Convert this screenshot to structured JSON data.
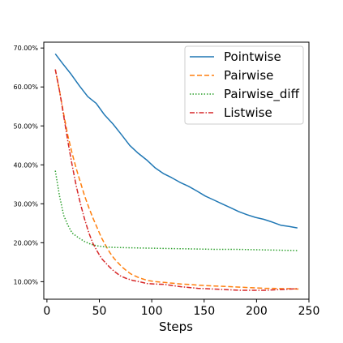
{
  "chart_data": {
    "type": "line",
    "title": "",
    "xlabel": "Steps",
    "ylabel": "",
    "xlim": [
      -3,
      250
    ],
    "ylim": [
      5.5,
      71.5
    ],
    "xticks": [
      0,
      50,
      100,
      150,
      200,
      250
    ],
    "yticks": [
      10,
      20,
      30,
      40,
      50,
      60,
      70
    ],
    "ytick_labels": [
      "10.00%",
      "20.00%",
      "30.00%",
      "40.00%",
      "50.00%",
      "60.00%",
      "70.00%"
    ],
    "grid": false,
    "legend_position": "top-right",
    "colors": {
      "Pointwise": "#1f77b4",
      "Pairwise": "#ff7f0e",
      "Pairwise_diff": "#2ca02c",
      "Listwise": "#d62728"
    },
    "series": [
      {
        "name": "Pointwise",
        "style": "solid",
        "x": [
          8,
          15,
          23,
          31,
          39,
          47,
          55,
          63,
          71,
          79,
          87,
          95,
          103,
          111,
          119,
          127,
          135,
          143,
          151,
          159,
          167,
          175,
          183,
          191,
          199,
          207,
          215,
          223,
          231,
          239
        ],
        "y": [
          68.5,
          66.0,
          63.3,
          60.3,
          57.5,
          55.8,
          52.8,
          50.5,
          47.8,
          45.0,
          43.0,
          41.3,
          39.3,
          37.8,
          36.7,
          35.5,
          34.5,
          33.3,
          32.0,
          31.0,
          30.0,
          29.0,
          28.0,
          27.2,
          26.5,
          26.0,
          25.3,
          24.5,
          24.2,
          23.8
        ]
      },
      {
        "name": "Pairwise",
        "style": "dashed",
        "x": [
          8,
          12,
          16,
          20,
          24,
          28,
          32,
          36,
          40,
          44,
          48,
          52,
          56,
          60,
          64,
          68,
          72,
          76,
          80,
          88,
          96,
          104,
          112,
          120,
          128,
          136,
          144,
          152,
          160,
          168,
          176,
          184,
          192,
          200,
          208,
          216,
          224,
          232,
          240
        ],
        "y": [
          64.5,
          59.0,
          53.0,
          47.5,
          43.0,
          39.0,
          35.5,
          32.0,
          29.0,
          26.3,
          23.8,
          21.3,
          19.3,
          17.5,
          16.0,
          14.8,
          13.7,
          12.8,
          12.0,
          11.0,
          10.3,
          10.0,
          9.8,
          9.6,
          9.4,
          9.3,
          9.1,
          9.0,
          8.9,
          8.8,
          8.7,
          8.6,
          8.5,
          8.4,
          8.3,
          8.3,
          8.2,
          8.2,
          8.1
        ]
      },
      {
        "name": "Pairwise_diff",
        "style": "dotted",
        "x": [
          8,
          12,
          16,
          20,
          24,
          30,
          36,
          42,
          48,
          56,
          64,
          80,
          100,
          120,
          140,
          160,
          180,
          200,
          220,
          240
        ],
        "y": [
          38.5,
          32.0,
          27.0,
          24.5,
          22.5,
          21.3,
          20.3,
          19.6,
          19.2,
          18.9,
          18.8,
          18.7,
          18.6,
          18.5,
          18.4,
          18.3,
          18.3,
          18.2,
          18.1,
          18.0
        ]
      },
      {
        "name": "Listwise",
        "style": "dashdot",
        "x": [
          8,
          12,
          16,
          20,
          24,
          28,
          32,
          36,
          40,
          44,
          48,
          52,
          56,
          60,
          64,
          70,
          76,
          82,
          88,
          96,
          104,
          112,
          120,
          128,
          136,
          144,
          152,
          160,
          168,
          176,
          184,
          192,
          200,
          208,
          216,
          224,
          232,
          240
        ],
        "y": [
          64.5,
          59.0,
          52.5,
          46.0,
          40.0,
          34.5,
          30.0,
          26.0,
          22.5,
          19.8,
          17.8,
          16.0,
          14.8,
          13.7,
          12.7,
          11.5,
          10.8,
          10.3,
          10.0,
          9.5,
          9.4,
          9.3,
          9.0,
          8.7,
          8.5,
          8.3,
          8.2,
          8.1,
          8.0,
          7.9,
          7.8,
          7.8,
          7.8,
          7.8,
          7.9,
          8.0,
          8.1,
          8.2
        ]
      }
    ]
  }
}
